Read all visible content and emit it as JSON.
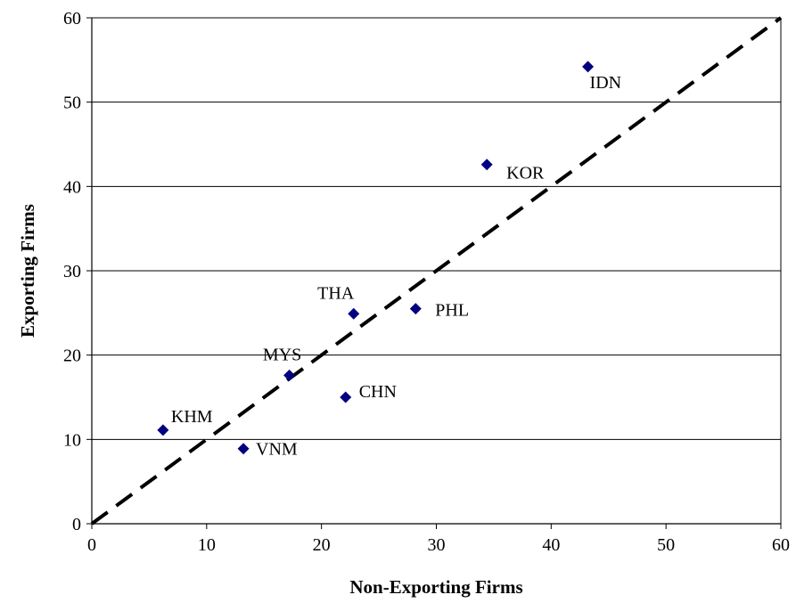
{
  "chart_data": {
    "type": "scatter",
    "title": "",
    "xlabel": "Non-Exporting Firms",
    "ylabel": "Exporting Firms",
    "xlim": [
      0,
      60
    ],
    "ylim": [
      0,
      60
    ],
    "x_ticks": [
      0,
      10,
      20,
      30,
      40,
      50,
      60
    ],
    "y_ticks": [
      0,
      10,
      20,
      30,
      40,
      50,
      60
    ],
    "grid": "horizontal",
    "points": [
      {
        "label": "IDN",
        "x": 43.2,
        "y": 54.2
      },
      {
        "label": "KOR",
        "x": 34.4,
        "y": 42.6
      },
      {
        "label": "THA",
        "x": 22.8,
        "y": 24.9
      },
      {
        "label": "PHL",
        "x": 28.2,
        "y": 25.5
      },
      {
        "label": "MYS",
        "x": 17.2,
        "y": 17.6
      },
      {
        "label": "CHN",
        "x": 22.1,
        "y": 15.0
      },
      {
        "label": "KHM",
        "x": 6.2,
        "y": 11.1
      },
      {
        "label": "VNM",
        "x": 13.2,
        "y": 8.9
      }
    ],
    "reference_line": {
      "style": "dashed",
      "from": [
        0,
        0
      ],
      "to": [
        60,
        60
      ]
    },
    "marker_color": "#000080"
  }
}
